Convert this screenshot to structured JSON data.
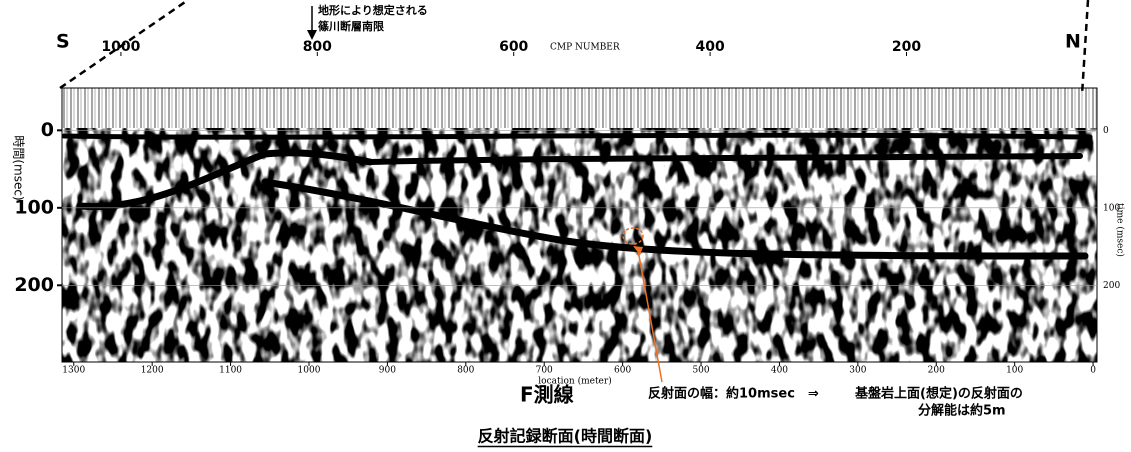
{
  "header": {
    "south": "S",
    "north": "N",
    "fault_note": [
      "地形により想定される",
      "篠川断層南限"
    ],
    "cmp_label": "CMP NUMBER"
  },
  "axes": {
    "cmp": {
      "lim": [
        1060,
        6
      ],
      "ticks": [
        1000,
        800,
        600,
        400,
        200
      ]
    },
    "location": {
      "label": "location (meter)",
      "lim": [
        1315,
        -5
      ],
      "ticks": [
        1300,
        1200,
        1100,
        1000,
        900,
        800,
        700,
        600,
        500,
        400,
        300,
        200,
        100,
        0
      ]
    },
    "time": {
      "label": "時間(msec)",
      "label_right": "time (msec)",
      "lim": [
        -3,
        299
      ],
      "ticks": [
        0,
        100,
        200
      ]
    }
  },
  "annotation": {
    "line_name": "F測線",
    "note": [
      "反射面の幅：約10msec　⇒",
      "基盤岩上面(想定)の反射面の",
      "分解能は約5m"
    ]
  },
  "caption": "反射記録断面(時間断面)"
}
